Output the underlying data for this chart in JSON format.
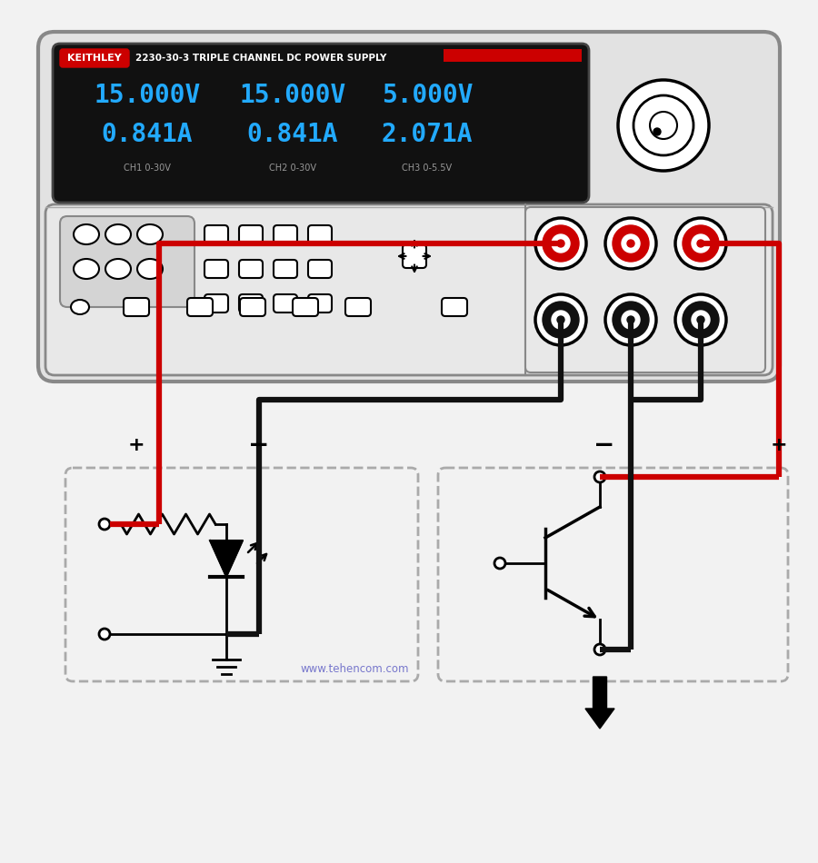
{
  "title_brand": "KEITHLEY",
  "title_model": "2230-30-3 TRIPLE CHANNEL DC POWER SUPPLY",
  "display_line1": [
    "15.000V",
    "15.000V",
    "5.000V"
  ],
  "display_line2": [
    "0.841A",
    "0.841A",
    "2.071A"
  ],
  "channel_labels": [
    "CH1 0-30V",
    "CH2 0-30V",
    "CH3 0-5.5V"
  ],
  "bg_color": "#f2f2f2",
  "display_bg": "#111111",
  "display_text_color": "#22aaff",
  "brand_bg": "#cc0000",
  "brand_text": "#ffffff",
  "channel_text_color": "#999999",
  "wire_red": "#cc0000",
  "wire_black": "#111111",
  "dashed_box_color": "#aaaaaa",
  "website_color": "#7777cc",
  "website_text": "www.tehencom.com"
}
